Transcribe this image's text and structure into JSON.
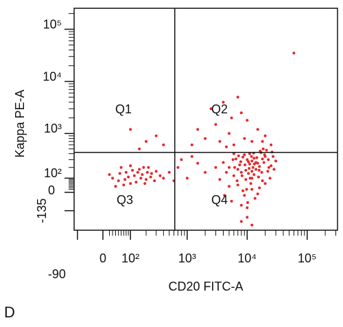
{
  "chart_data": {
    "type": "scatter",
    "panel_label": "D",
    "x_label": "CD20 FITC-A",
    "y_label": "Kappa PE-A",
    "x_scale": "biexponential",
    "y_scale": "biexponential",
    "color": "#e8262a",
    "xlim": [
      -106,
      320000
    ],
    "ylim": [
      -384,
      252000
    ],
    "xticks": [
      -90,
      0,
      {
        "value": 100,
        "label": "10²"
      },
      {
        "value": 1000,
        "label": "10³"
      },
      {
        "value": 10000,
        "label": "10⁴"
      },
      {
        "value": 100000,
        "label": "10⁵"
      }
    ],
    "yticks": [
      -135,
      0,
      {
        "value": 100,
        "label": "10²"
      },
      {
        "value": 1000,
        "label": "10³"
      },
      {
        "value": 10000,
        "label": "10⁴"
      },
      {
        "value": 100000,
        "label": "10⁵"
      }
    ],
    "quadrant_x": 620,
    "quadrant_y": 423,
    "quadrants": [
      "Q1",
      "Q2",
      "Q3",
      "Q4"
    ],
    "x": [
      5000,
      8000,
      10000,
      12000,
      15000,
      20000,
      7000,
      9000,
      11000,
      6000,
      14000,
      18000,
      25000,
      4000,
      13000,
      16000,
      9500,
      7500,
      22000,
      30000,
      5500,
      8500,
      10500,
      12500,
      17000,
      19000,
      6500,
      11500,
      15500,
      9000,
      4500,
      3500,
      27000,
      21000,
      13500,
      8000,
      10000,
      12000,
      14500,
      7000,
      24000,
      16000,
      6000,
      11000,
      9500,
      18500,
      5000,
      20000,
      12000,
      8500,
      15000,
      26000,
      3000,
      7800,
      10800,
      13000,
      17500,
      9200,
      11800,
      6800,
      14000,
      19500,
      22500,
      4200,
      16500,
      10200,
      8200,
      12800,
      5800,
      23000,
      9800,
      11200,
      15800,
      7200,
      13200,
      18000,
      6200,
      10500,
      28000,
      12000,
      8000,
      12000,
      10000,
      30,
      50,
      80,
      100,
      120,
      150,
      200,
      250,
      60,
      40,
      90,
      130,
      170,
      220,
      300,
      70,
      110,
      160,
      190,
      240,
      20,
      350,
      100,
      55,
      140,
      180,
      280,
      75,
      210,
      400,
      2000,
      3000,
      5000,
      8000,
      12000,
      1500,
      4000,
      6000,
      10000,
      20000,
      2500,
      7000,
      15000,
      3500,
      1200,
      9000,
      25000,
      5500,
      18000,
      4500,
      200,
      100,
      300,
      400,
      150,
      500,
      700,
      1000,
      1500,
      800,
      2000,
      600,
      1200,
      60000
    ],
    "y": [
      200,
      150,
      300,
      100,
      250,
      350,
      50,
      -20,
      400,
      120,
      180,
      80,
      220,
      260,
      320,
      30,
      90,
      230,
      160,
      280,
      -60,
      10,
      140,
      200,
      420,
      260,
      310,
      60,
      110,
      380,
      150,
      90,
      350,
      470,
      -40,
      -90,
      -110,
      20,
      330,
      180,
      100,
      210,
      400,
      240,
      170,
      500,
      40,
      60,
      280,
      340,
      -10,
      430,
      200,
      270,
      190,
      130,
      150,
      230,
      350,
      80,
      260,
      380,
      300,
      -20,
      450,
      -70,
      120,
      410,
      300,
      200,
      20,
      100,
      170,
      360,
      240,
      310,
      200,
      270,
      180,
      160,
      -250,
      -300,
      -200,
      100,
      80,
      150,
      60,
      120,
      180,
      90,
      140,
      200,
      40,
      110,
      70,
      130,
      200,
      160,
      50,
      170,
      100,
      60,
      110,
      130,
      120,
      220,
      140,
      150,
      200,
      80,
      90,
      150,
      100,
      800,
      1500,
      1000,
      2500,
      700,
      1200,
      4000,
      600,
      1800,
      900,
      3000,
      5000,
      1200,
      700,
      600,
      800,
      600,
      2000,
      700,
      550,
      700,
      1200,
      900,
      600,
      500,
      150,
      200,
      100,
      250,
      300,
      150,
      80,
      350,
      35000
    ]
  }
}
